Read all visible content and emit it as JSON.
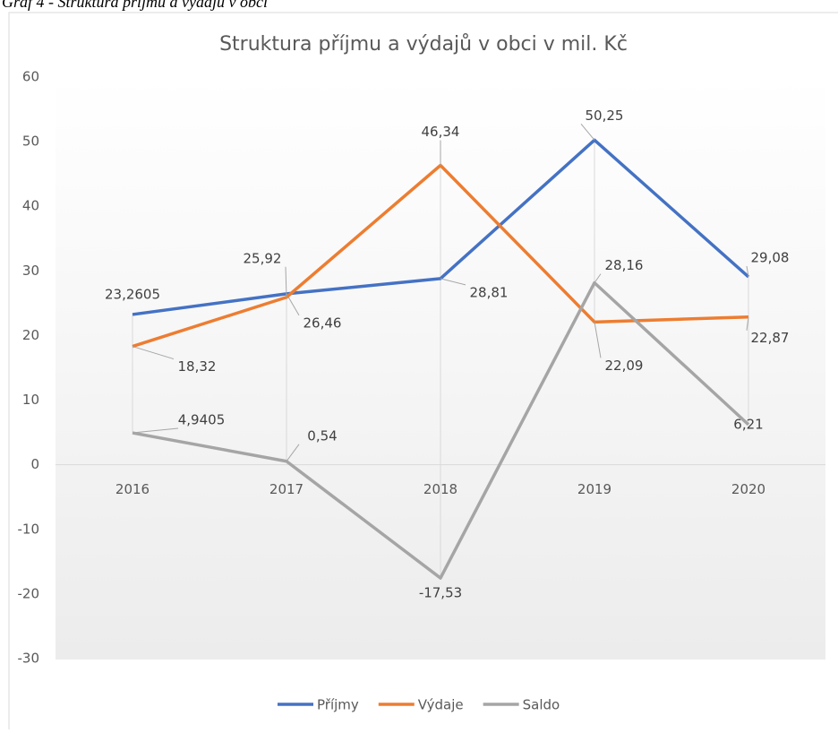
{
  "caption": "Graf 4 - Struktura příjmu a výdajů v obci",
  "chart_data": {
    "type": "line",
    "title": "Struktura příjmu a výdajů v obci v mil. Kč",
    "categories": [
      "2016",
      "2017",
      "2018",
      "2019",
      "2020"
    ],
    "series": [
      {
        "name": "Příjmy",
        "color": "#4472c4",
        "values": [
          23.2605,
          26.46,
          28.81,
          50.25,
          29.08
        ],
        "value_labels": [
          "23,2605",
          "26,46",
          "28,81",
          "50,25",
          "29,08"
        ]
      },
      {
        "name": "Výdaje",
        "color": "#ed7d31",
        "values": [
          18.32,
          25.92,
          46.34,
          22.09,
          22.87
        ],
        "value_labels": [
          "18,32",
          "25,92",
          "46,34",
          "22,09",
          "22,87"
        ]
      },
      {
        "name": "Saldo",
        "color": "#a5a5a5",
        "values": [
          4.9405,
          0.54,
          -17.53,
          28.16,
          6.21
        ],
        "value_labels": [
          "4,9405",
          "0,54",
          "-17,53",
          "28,16",
          "6,21"
        ]
      }
    ],
    "ylim": [
      -30,
      60
    ],
    "yticks": [
      -30,
      -20,
      -10,
      0,
      10,
      20,
      30,
      40,
      50,
      60
    ],
    "grid": false,
    "legend": "bottom"
  }
}
